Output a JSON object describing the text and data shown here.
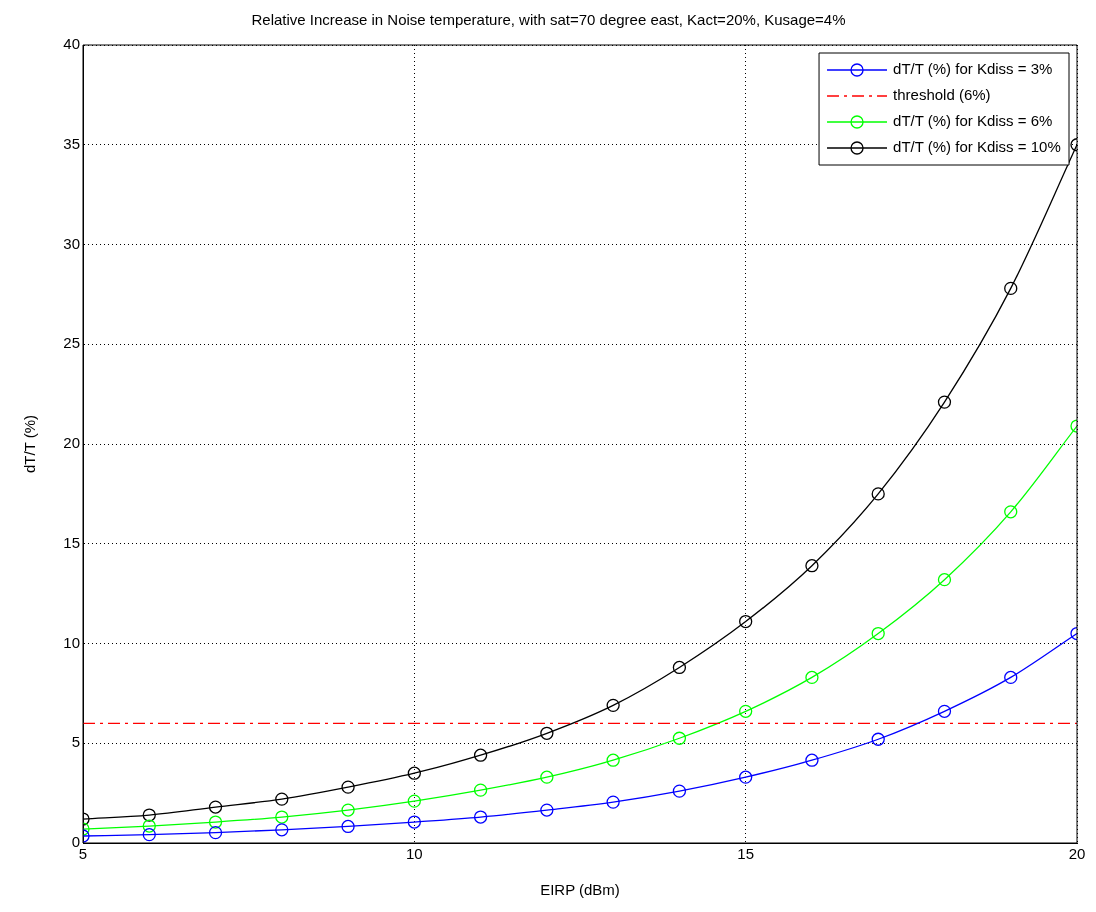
{
  "chart_data": {
    "type": "line",
    "title": "Relative Increase in Noise temperature, with sat=70 degree east, Kact=20%, Kusage=4%",
    "xlabel": "EIRP (dBm)",
    "ylabel": "dT/T (%)",
    "x": [
      5,
      6,
      7,
      8,
      9,
      10,
      11,
      12,
      13,
      14,
      15,
      16,
      17,
      18,
      19,
      20
    ],
    "series": [
      {
        "name": "dT/T (%) for Kdiss = 3%",
        "color": "#0000ff",
        "values": [
          0.35,
          0.42,
          0.52,
          0.66,
          0.83,
          1.05,
          1.3,
          1.65,
          2.05,
          2.6,
          3.3,
          4.15,
          5.2,
          6.6,
          8.3,
          10.5
        ]
      },
      {
        "name": "threshold (6%)",
        "color": "#ff0000",
        "x": [
          5,
          20
        ],
        "values": [
          6,
          6
        ],
        "marker": "none",
        "line_style": "dashed"
      },
      {
        "name": "dT/T (%) for Kdiss = 6%",
        "color": "#00ff00",
        "values": [
          0.7,
          0.85,
          1.05,
          1.3,
          1.65,
          2.1,
          2.65,
          3.3,
          4.15,
          5.25,
          6.6,
          8.3,
          10.5,
          13.2,
          16.6,
          20.9
        ]
      },
      {
        "name": "dT/T (%) for Kdiss = 10%",
        "color": "#000000",
        "values": [
          1.2,
          1.4,
          1.8,
          2.2,
          2.8,
          3.5,
          4.4,
          5.5,
          6.9,
          8.8,
          11.1,
          13.9,
          17.5,
          22.1,
          27.8,
          35.0
        ]
      }
    ],
    "xlim": [
      5,
      20
    ],
    "xticks": [
      5,
      10,
      15,
      20
    ],
    "ylim": [
      0,
      40
    ],
    "yticks": [
      0,
      5,
      10,
      15,
      20,
      25,
      30,
      35,
      40
    ],
    "grid": true,
    "legend": "top right",
    "marker": "circle",
    "line_style": "solid"
  }
}
